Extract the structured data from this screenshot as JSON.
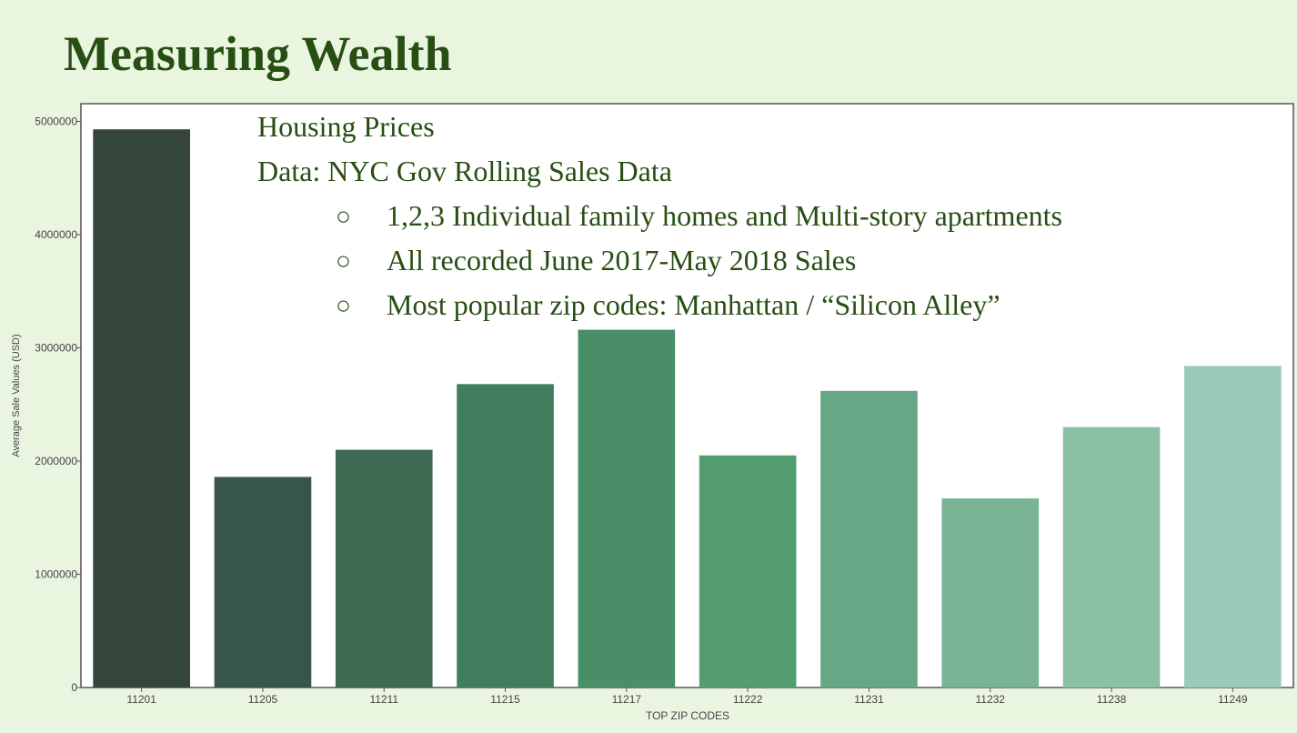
{
  "slide": {
    "title": "Measuring Wealth",
    "heading": "Housing Prices",
    "data_source": "Data: NYC Gov Rolling Sales Data",
    "bullet_symbol": "○",
    "bullets": [
      "1,2,3 Individual family homes and Multi-story apartments",
      "All recorded June 2017-May 2018 Sales",
      "Most popular zip codes: Manhattan / “Silicon Alley”"
    ]
  },
  "chart_data": {
    "type": "bar",
    "xlabel": "TOP ZIP CODES",
    "ylabel": "Average Sale Values (USD)",
    "ylim": [
      0,
      5150000
    ],
    "yticks": [
      0,
      1000000,
      2000000,
      3000000,
      4000000,
      5000000
    ],
    "grid": false,
    "categories": [
      "11201",
      "11205",
      "11211",
      "11215",
      "11217",
      "11222",
      "11231",
      "11232",
      "11238",
      "11249"
    ],
    "values": [
      4930000,
      1860000,
      2100000,
      2680000,
      3160000,
      2050000,
      2620000,
      1670000,
      2300000,
      2840000
    ],
    "colors": [
      "#34453b",
      "#38554a",
      "#3c6a53",
      "#417e5d",
      "#4a8e68",
      "#549d71",
      "#66a885",
      "#79b497",
      "#89c0a6",
      "#9bcbb8"
    ]
  }
}
